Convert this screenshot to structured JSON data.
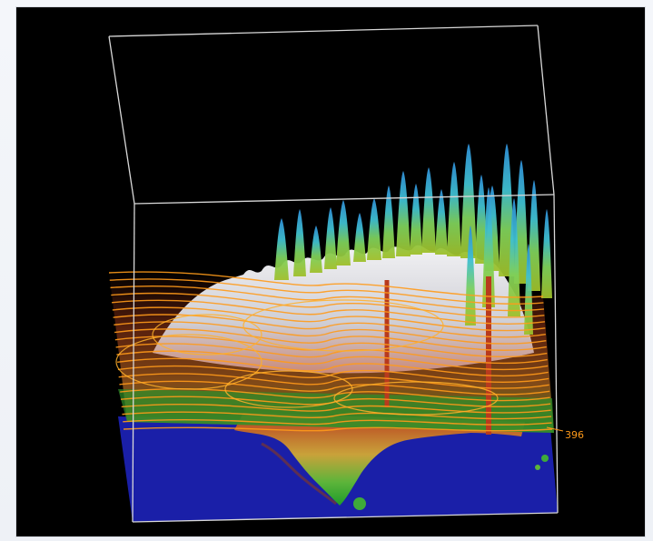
{
  "visualization": {
    "contour_label": "396",
    "colors": {
      "background": "#000000",
      "ocean": "#1a1fa8",
      "land_low": "#1e9c2a",
      "land_high": "#b83a1e",
      "contour": "#ff9a1a",
      "iso_top": "#38a8e0",
      "iso_mid": "#6ccf5a",
      "iso_white": "#e8e8ec",
      "box_lines": "#d8d8d8"
    },
    "icons": {
      "view": "3d-volume-render",
      "terrain": "terrain-heightmap"
    }
  }
}
